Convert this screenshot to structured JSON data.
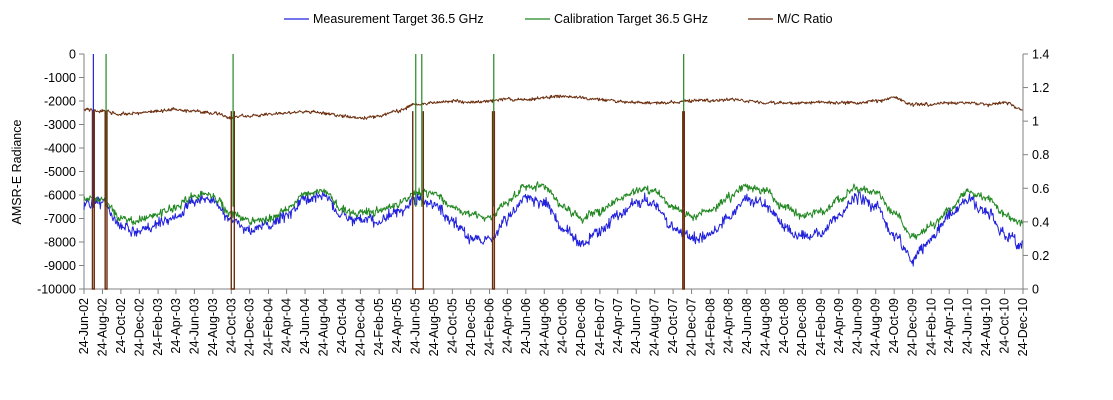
{
  "chart_data": {
    "type": "line",
    "ylabel": "AMSR-E Radiance",
    "ylim": [
      -10000,
      0
    ],
    "y2lim": [
      0,
      1.4
    ],
    "yticks": [
      0,
      -1000,
      -2000,
      -3000,
      -4000,
      -5000,
      -6000,
      -7000,
      -8000,
      -9000,
      -10000
    ],
    "y2ticks": [
      0,
      0.2,
      0.4,
      0.6,
      0.8,
      1,
      1.2,
      1.4
    ],
    "ytick_labels": [
      "0",
      "-1000",
      "-2000",
      "-3000",
      "-4000",
      "-5000",
      "-6000",
      "-7000",
      "-8000",
      "-9000",
      "-10000"
    ],
    "y2tick_labels": [
      "0",
      "0.2",
      "0.4",
      "0.6",
      "0.8",
      "1",
      "1.2",
      "1.4"
    ],
    "xlim": [
      "2002-06-24",
      "2010-12-24"
    ],
    "x_tick_labels": [
      "24-Jun-02",
      "24-Aug-02",
      "24-Oct-02",
      "24-Dec-02",
      "24-Feb-03",
      "24-Apr-03",
      "24-Jun-03",
      "24-Aug-03",
      "24-Oct-03",
      "24-Dec-03",
      "24-Feb-04",
      "24-Apr-04",
      "24-Jun-04",
      "24-Aug-04",
      "24-Oct-04",
      "24-Dec-04",
      "24-Feb-05",
      "24-Apr-05",
      "24-Jun-05",
      "24-Aug-05",
      "24-Oct-05",
      "24-Dec-05",
      "24-Feb-06",
      "24-Apr-06",
      "24-Jun-06",
      "24-Aug-06",
      "24-Oct-06",
      "24-Dec-06",
      "24-Feb-07",
      "24-Apr-07",
      "24-Jun-07",
      "24-Aug-07",
      "24-Oct-07",
      "24-Dec-07",
      "24-Feb-08",
      "24-Apr-08",
      "24-Jun-08",
      "24-Aug-08",
      "24-Oct-08",
      "24-Dec-08",
      "24-Feb-09",
      "24-Apr-09",
      "24-Jun-09",
      "24-Aug-09",
      "24-Oct-09",
      "24-Dec-09",
      "24-Feb-10",
      "24-Apr-10",
      "24-Jun-10",
      "24-Aug-10",
      "24-Oct-10",
      "24-Dec-10"
    ],
    "grid": false,
    "legend_position": "top-center",
    "series": [
      {
        "name": "Measurement Target 36.5 GHz",
        "axis": "left",
        "color": "#2222dd",
        "x": [
          "2002-06-24",
          "2002-08-24",
          "2002-10-24",
          "2002-12-24",
          "2003-02-24",
          "2003-04-24",
          "2003-06-24",
          "2003-08-24",
          "2003-10-24",
          "2003-12-24",
          "2004-02-24",
          "2004-04-24",
          "2004-06-24",
          "2004-08-24",
          "2004-10-24",
          "2004-12-24",
          "2005-02-24",
          "2005-04-24",
          "2005-06-24",
          "2005-08-24",
          "2005-10-24",
          "2005-12-24",
          "2006-02-24",
          "2006-04-24",
          "2006-06-24",
          "2006-08-24",
          "2006-10-24",
          "2006-12-24",
          "2007-02-24",
          "2007-04-24",
          "2007-06-24",
          "2007-08-24",
          "2007-10-24",
          "2007-12-24",
          "2008-02-24",
          "2008-04-24",
          "2008-06-24",
          "2008-08-24",
          "2008-10-24",
          "2008-12-24",
          "2009-02-24",
          "2009-04-24",
          "2009-06-24",
          "2009-08-24",
          "2009-10-24",
          "2009-12-24",
          "2010-02-24",
          "2010-04-24",
          "2010-06-24",
          "2010-08-24",
          "2010-10-24",
          "2010-12-24"
        ],
        "y": [
          -6400,
          -6300,
          -7300,
          -7600,
          -7200,
          -6900,
          -6300,
          -6200,
          -7100,
          -7500,
          -7300,
          -6800,
          -6200,
          -6000,
          -6900,
          -7100,
          -7100,
          -6800,
          -6200,
          -6400,
          -7200,
          -7800,
          -7900,
          -7000,
          -6100,
          -6300,
          -7400,
          -8100,
          -7500,
          -6900,
          -6300,
          -6400,
          -7400,
          -7800,
          -7700,
          -6900,
          -6200,
          -6400,
          -7300,
          -7800,
          -7600,
          -6900,
          -6100,
          -6500,
          -7700,
          -8700,
          -7800,
          -6900,
          -6200,
          -6700,
          -7700,
          -8300
        ]
      },
      {
        "name": "Calibration Target 36.5 GHz",
        "axis": "left",
        "color": "#228822",
        "x": [
          "2002-06-24",
          "2002-08-24",
          "2002-10-24",
          "2002-12-24",
          "2003-02-24",
          "2003-04-24",
          "2003-06-24",
          "2003-08-24",
          "2003-10-24",
          "2003-12-24",
          "2004-02-24",
          "2004-04-24",
          "2004-06-24",
          "2004-08-24",
          "2004-10-24",
          "2004-12-24",
          "2005-02-24",
          "2005-04-24",
          "2005-06-24",
          "2005-08-24",
          "2005-10-24",
          "2005-12-24",
          "2006-02-24",
          "2006-04-24",
          "2006-06-24",
          "2006-08-24",
          "2006-10-24",
          "2006-12-24",
          "2007-02-24",
          "2007-04-24",
          "2007-06-24",
          "2007-08-24",
          "2007-10-24",
          "2007-12-24",
          "2008-02-24",
          "2008-04-24",
          "2008-06-24",
          "2008-08-24",
          "2008-10-24",
          "2008-12-24",
          "2009-02-24",
          "2009-04-24",
          "2009-06-24",
          "2009-08-24",
          "2009-10-24",
          "2009-12-24",
          "2010-02-24",
          "2010-04-24",
          "2010-06-24",
          "2010-08-24",
          "2010-10-24",
          "2010-12-24"
        ],
        "y": [
          -6100,
          -6200,
          -7000,
          -7100,
          -6800,
          -6500,
          -6000,
          -6000,
          -6800,
          -7100,
          -7000,
          -6600,
          -6000,
          -5800,
          -6600,
          -6800,
          -6700,
          -6400,
          -5900,
          -5900,
          -6500,
          -6800,
          -7000,
          -6300,
          -5600,
          -5700,
          -6500,
          -7000,
          -6700,
          -6200,
          -5800,
          -5800,
          -6500,
          -6900,
          -6700,
          -6100,
          -5600,
          -5800,
          -6500,
          -6900,
          -6700,
          -6200,
          -5700,
          -5900,
          -6800,
          -7800,
          -7300,
          -6600,
          -5900,
          -6100,
          -6800,
          -7200
        ]
      },
      {
        "name": "M/C Ratio",
        "axis": "right",
        "color": "#6b2e0e",
        "x": [
          "2002-06-24",
          "2002-08-24",
          "2002-10-24",
          "2002-12-24",
          "2003-02-24",
          "2003-04-24",
          "2003-06-24",
          "2003-08-24",
          "2003-10-24",
          "2003-12-24",
          "2004-02-24",
          "2004-04-24",
          "2004-06-24",
          "2004-08-24",
          "2004-10-24",
          "2004-12-24",
          "2005-02-24",
          "2005-04-24",
          "2005-06-24",
          "2005-08-24",
          "2005-10-24",
          "2005-12-24",
          "2006-02-24",
          "2006-04-24",
          "2006-06-24",
          "2006-08-24",
          "2006-10-24",
          "2006-12-24",
          "2007-02-24",
          "2007-04-24",
          "2007-06-24",
          "2007-08-24",
          "2007-10-24",
          "2007-12-24",
          "2008-02-24",
          "2008-04-24",
          "2008-06-24",
          "2008-08-24",
          "2008-10-24",
          "2008-12-24",
          "2009-02-24",
          "2009-04-24",
          "2009-06-24",
          "2009-08-24",
          "2009-10-24",
          "2009-12-24",
          "2010-02-24",
          "2010-04-24",
          "2010-06-24",
          "2010-08-24",
          "2010-10-24",
          "2010-12-24"
        ],
        "y": [
          1.07,
          1.06,
          1.04,
          1.05,
          1.06,
          1.07,
          1.06,
          1.05,
          1.02,
          1.03,
          1.04,
          1.05,
          1.06,
          1.05,
          1.03,
          1.02,
          1.03,
          1.06,
          1.1,
          1.11,
          1.12,
          1.11,
          1.12,
          1.13,
          1.13,
          1.14,
          1.15,
          1.14,
          1.13,
          1.12,
          1.11,
          1.11,
          1.11,
          1.12,
          1.12,
          1.13,
          1.12,
          1.11,
          1.11,
          1.11,
          1.11,
          1.11,
          1.11,
          1.12,
          1.14,
          1.1,
          1.1,
          1.11,
          1.11,
          1.1,
          1.11,
          1.07
        ]
      }
    ],
    "dropouts": [
      {
        "x": "2002-07-25",
        "axis": "left",
        "series": "Measurement Target 36.5 GHz",
        "color": "#2222dd"
      },
      {
        "x": "2002-09-05",
        "axis": "left",
        "series": "Calibration Target 36.5 GHz",
        "color": "#228822"
      },
      {
        "x": "2003-10-30",
        "axis": "left",
        "series": "Calibration Target 36.5 GHz",
        "color": "#228822"
      },
      {
        "x": "2005-06-25",
        "axis": "left",
        "series": "Calibration Target 36.5 GHz",
        "color": "#228822"
      },
      {
        "x": "2005-07-15",
        "axis": "left",
        "series": "Calibration Target 36.5 GHz",
        "color": "#228822"
      },
      {
        "x": "2006-03-10",
        "axis": "left",
        "series": "Calibration Target 36.5 GHz",
        "color": "#228822"
      },
      {
        "x": "2007-11-28",
        "axis": "left",
        "series": "Calibration Target 36.5 GHz",
        "color": "#228822"
      }
    ],
    "ratio_dropouts": [
      {
        "start": "2002-07-22",
        "end": "2002-07-28"
      },
      {
        "start": "2002-09-02",
        "end": "2002-09-08"
      },
      {
        "start": "2003-10-24",
        "end": "2003-11-03"
      },
      {
        "start": "2005-06-15",
        "end": "2005-07-20"
      },
      {
        "start": "2006-03-06",
        "end": "2006-03-12"
      },
      {
        "start": "2007-11-25",
        "end": "2007-11-30"
      }
    ]
  }
}
